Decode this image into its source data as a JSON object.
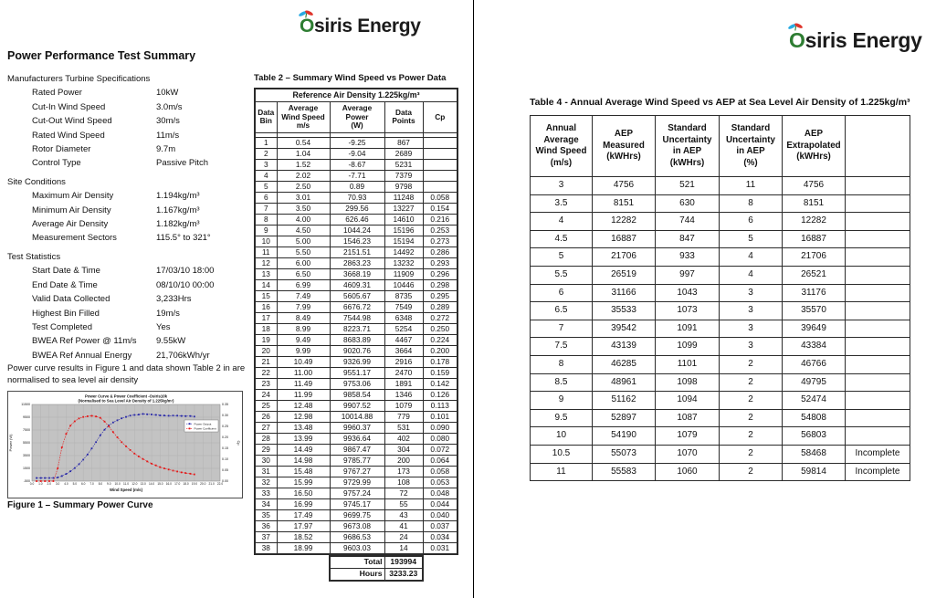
{
  "page_left": {
    "logo": {
      "o": "O",
      "rest": "siris Energy"
    },
    "title": "Power Performance Test Summary",
    "spec_sections": [
      {
        "heading": "Manufacturers Turbine Specifications",
        "items": [
          {
            "label": "Rated Power",
            "value": "10kW"
          },
          {
            "label": "Cut-In Wind Speed",
            "value": "3.0m/s"
          },
          {
            "label": "Cut-Out Wind Speed",
            "value": "30m/s"
          },
          {
            "label": "Rated Wind Speed",
            "value": "11m/s"
          },
          {
            "label": "Rotor Diameter",
            "value": "9.7m"
          },
          {
            "label": "Control Type",
            "value": "Passive Pitch"
          }
        ]
      },
      {
        "heading": "Site Conditions",
        "items": [
          {
            "label": "Maximum Air Density",
            "value": "1.194kg/m³"
          },
          {
            "label": "Minimum Air Density",
            "value": "1.167kg/m³"
          },
          {
            "label": "Average Air Density",
            "value": "1.182kg/m³"
          },
          {
            "label": "Measurement Sectors",
            "value": "115.5° to 321°"
          }
        ]
      },
      {
        "heading": "Test Statistics",
        "items": [
          {
            "label": "Start Date & Time",
            "value": "17/03/10 18:00"
          },
          {
            "label": "End Date & Time",
            "value": "08/10/10 00:00"
          },
          {
            "label": "Valid Data Collected",
            "value": "3,233Hrs"
          },
          {
            "label": "Highest Bin Filled",
            "value": "19m/s"
          },
          {
            "label": "Test Completed",
            "value": "Yes"
          },
          {
            "label": "BWEA Ref Power @ 11m/s",
            "value": "9.55kW"
          },
          {
            "label": "BWEA Ref Annual Energy",
            "value": "21,706kWh/yr"
          }
        ]
      }
    ],
    "note": "Power curve results in Figure 1 and data shown Table 2 in are normalised to sea level air density",
    "figure_caption": "Figure 1 – Summary Power Curve",
    "table2": {
      "title": "Table 2 – Summary Wind Speed vs Power Data",
      "header_span": "Reference Air Density 1.225kg/m³",
      "columns": [
        "Data\nBin",
        "Average\nWind Speed\nm/s",
        "Average\nPower\n(W)",
        "Data\nPoints",
        "Cp"
      ],
      "rows": [
        [
          "1",
          "0.54",
          "-9.25",
          "867",
          ""
        ],
        [
          "2",
          "1.04",
          "-9.04",
          "2689",
          ""
        ],
        [
          "3",
          "1.52",
          "-8.67",
          "5231",
          ""
        ],
        [
          "4",
          "2.02",
          "-7.71",
          "7379",
          ""
        ],
        [
          "5",
          "2.50",
          "0.89",
          "9798",
          ""
        ],
        [
          "6",
          "3.01",
          "70.93",
          "11248",
          "0.058"
        ],
        [
          "7",
          "3.50",
          "299.56",
          "13227",
          "0.154"
        ],
        [
          "8",
          "4.00",
          "626.46",
          "14610",
          "0.216"
        ],
        [
          "9",
          "4.50",
          "1044.24",
          "15196",
          "0.253"
        ],
        [
          "10",
          "5.00",
          "1546.23",
          "15194",
          "0.273"
        ],
        [
          "11",
          "5.50",
          "2151.51",
          "14492",
          "0.286"
        ],
        [
          "12",
          "6.00",
          "2863.23",
          "13232",
          "0.293"
        ],
        [
          "13",
          "6.50",
          "3668.19",
          "11909",
          "0.296"
        ],
        [
          "14",
          "6.99",
          "4609.31",
          "10446",
          "0.298"
        ],
        [
          "15",
          "7.49",
          "5605.67",
          "8735",
          "0.295"
        ],
        [
          "16",
          "7.99",
          "6676.72",
          "7549",
          "0.289"
        ],
        [
          "17",
          "8.49",
          "7544.98",
          "6348",
          "0.272"
        ],
        [
          "18",
          "8.99",
          "8223.71",
          "5254",
          "0.250"
        ],
        [
          "19",
          "9.49",
          "8683.89",
          "4467",
          "0.224"
        ],
        [
          "20",
          "9.99",
          "9020.76",
          "3664",
          "0.200"
        ],
        [
          "21",
          "10.49",
          "9326.99",
          "2916",
          "0.178"
        ],
        [
          "22",
          "11.00",
          "9551.17",
          "2470",
          "0.159"
        ],
        [
          "23",
          "11.49",
          "9753.06",
          "1891",
          "0.142"
        ],
        [
          "24",
          "11.99",
          "9858.54",
          "1346",
          "0.126"
        ],
        [
          "25",
          "12.48",
          "9907.52",
          "1079",
          "0.113"
        ],
        [
          "26",
          "12.98",
          "10014.88",
          "779",
          "0.101"
        ],
        [
          "27",
          "13.48",
          "9960.37",
          "531",
          "0.090"
        ],
        [
          "28",
          "13.99",
          "9936.64",
          "402",
          "0.080"
        ],
        [
          "29",
          "14.49",
          "9867.47",
          "304",
          "0.072"
        ],
        [
          "30",
          "14.98",
          "9785.77",
          "200",
          "0.064"
        ],
        [
          "31",
          "15.48",
          "9767.27",
          "173",
          "0.058"
        ],
        [
          "32",
          "15.99",
          "9729.99",
          "108",
          "0.053"
        ],
        [
          "33",
          "16.50",
          "9757.24",
          "72",
          "0.048"
        ],
        [
          "34",
          "16.99",
          "9745.17",
          "55",
          "0.044"
        ],
        [
          "35",
          "17.49",
          "9699.75",
          "43",
          "0.040"
        ],
        [
          "36",
          "17.97",
          "9673.08",
          "41",
          "0.037"
        ],
        [
          "37",
          "18.52",
          "9686.53",
          "24",
          "0.034"
        ],
        [
          "38",
          "18.99",
          "9603.03",
          "14",
          "0.031"
        ]
      ],
      "total_label": "Total",
      "total_value": "193994",
      "hours_label": "Hours",
      "hours_value": "3233.23"
    }
  },
  "page_right": {
    "logo": {
      "o": "O",
      "rest": "siris Energy"
    },
    "table4": {
      "title": "Table 4 - Annual Average Wind Speed vs AEP at Sea Level Air Density of 1.225kg/m³",
      "columns": [
        "Annual\nAverage\nWind Speed\n(m/s)",
        "AEP\nMeasured\n(kWHrs)",
        "Standard\nUncertainty\nin AEP\n(kWHrs)",
        "Standard\nUncertainty\nin AEP\n(%)",
        "AEP\nExtrapolated\n(kWHrs)",
        ""
      ],
      "rows": [
        [
          "3",
          "4756",
          "521",
          "11",
          "4756",
          ""
        ],
        [
          "3.5",
          "8151",
          "630",
          "8",
          "8151",
          ""
        ],
        [
          "4",
          "12282",
          "744",
          "6",
          "12282",
          ""
        ],
        [
          "4.5",
          "16887",
          "847",
          "5",
          "16887",
          ""
        ],
        [
          "5",
          "21706",
          "933",
          "4",
          "21706",
          ""
        ],
        [
          "5.5",
          "26519",
          "997",
          "4",
          "26521",
          ""
        ],
        [
          "6",
          "31166",
          "1043",
          "3",
          "31176",
          ""
        ],
        [
          "6.5",
          "35533",
          "1073",
          "3",
          "35570",
          ""
        ],
        [
          "7",
          "39542",
          "1091",
          "3",
          "39649",
          ""
        ],
        [
          "7.5",
          "43139",
          "1099",
          "3",
          "43384",
          ""
        ],
        [
          "8",
          "46285",
          "1101",
          "2",
          "46766",
          ""
        ],
        [
          "8.5",
          "48961",
          "1098",
          "2",
          "49795",
          ""
        ],
        [
          "9",
          "51162",
          "1094",
          "2",
          "52474",
          ""
        ],
        [
          "9.5",
          "52897",
          "1087",
          "2",
          "54808",
          ""
        ],
        [
          "10",
          "54190",
          "1079",
          "2",
          "56803",
          ""
        ],
        [
          "10.5",
          "55073",
          "1070",
          "2",
          "58468",
          "Incomplete"
        ],
        [
          "11",
          "55583",
          "1060",
          "2",
          "59814",
          "Incomplete"
        ]
      ]
    }
  },
  "chart_data": {
    "type": "line",
    "title": "Power Curve & Power Coefficient -Osiris10k",
    "subtitle": "(Normalised to Sea Level Air Density of 1.225kg/m³)",
    "xlabel": "Wind Speed (m/s)",
    "ylabel_left": "Power (W)",
    "ylabel_right": "Cp",
    "xlim": [
      0,
      22
    ],
    "xtick_step": 1,
    "ylim_left": [
      -500,
      11500
    ],
    "ytick_step_left": 2000,
    "ylim_right": [
      0,
      0.35
    ],
    "ytick_step_right": 0.05,
    "grid": true,
    "plot_bg": "#c3c3c3",
    "legend_position": "right-middle",
    "legend": [
      "Power Output",
      "Power Coefficient"
    ],
    "series": [
      {
        "name": "Power Output",
        "axis": "left",
        "color": "#2626a8",
        "x": [
          0.54,
          1.04,
          1.52,
          2.02,
          2.5,
          3.01,
          3.5,
          4.0,
          4.5,
          5.0,
          5.5,
          6.0,
          6.5,
          6.99,
          7.49,
          7.99,
          8.49,
          8.99,
          9.49,
          9.99,
          10.49,
          11.0,
          11.49,
          11.99,
          12.48,
          12.98,
          13.48,
          13.99,
          14.49,
          14.98,
          15.48,
          15.99,
          16.5,
          16.99,
          17.49,
          17.97,
          18.52,
          18.99
        ],
        "y": [
          -9.25,
          -9.04,
          -8.67,
          -7.71,
          0.89,
          70.93,
          299.56,
          626.46,
          1044.24,
          1546.23,
          2151.51,
          2863.23,
          3668.19,
          4609.31,
          5605.67,
          6676.72,
          7544.98,
          8223.71,
          8683.89,
          9020.76,
          9326.99,
          9551.17,
          9753.06,
          9858.54,
          9907.52,
          10014.88,
          9960.37,
          9936.64,
          9867.47,
          9785.77,
          9767.27,
          9729.99,
          9757.24,
          9745.17,
          9699.75,
          9673.08,
          9686.53,
          9603.03
        ]
      },
      {
        "name": "Power Coefficient",
        "axis": "right",
        "color": "#e51616",
        "x": [
          0.54,
          1.04,
          1.52,
          2.02,
          2.5,
          3.01,
          3.5,
          4.0,
          4.5,
          5.0,
          5.5,
          6.0,
          6.5,
          6.99,
          7.49,
          7.99,
          8.49,
          8.99,
          9.49,
          9.99,
          10.49,
          11.0,
          11.49,
          11.99,
          12.48,
          12.98,
          13.48,
          13.99,
          14.49,
          14.98,
          15.48,
          15.99,
          16.5,
          16.99,
          17.49,
          17.97,
          18.52,
          18.99
        ],
        "y": [
          null,
          null,
          null,
          null,
          null,
          0.058,
          0.154,
          0.216,
          0.253,
          0.273,
          0.286,
          0.293,
          0.296,
          0.298,
          0.295,
          0.289,
          0.272,
          0.25,
          0.224,
          0.2,
          0.178,
          0.159,
          0.142,
          0.126,
          0.113,
          0.101,
          0.09,
          0.08,
          0.072,
          0.064,
          0.058,
          0.053,
          0.048,
          0.044,
          0.04,
          0.037,
          0.034,
          0.031
        ]
      }
    ]
  }
}
